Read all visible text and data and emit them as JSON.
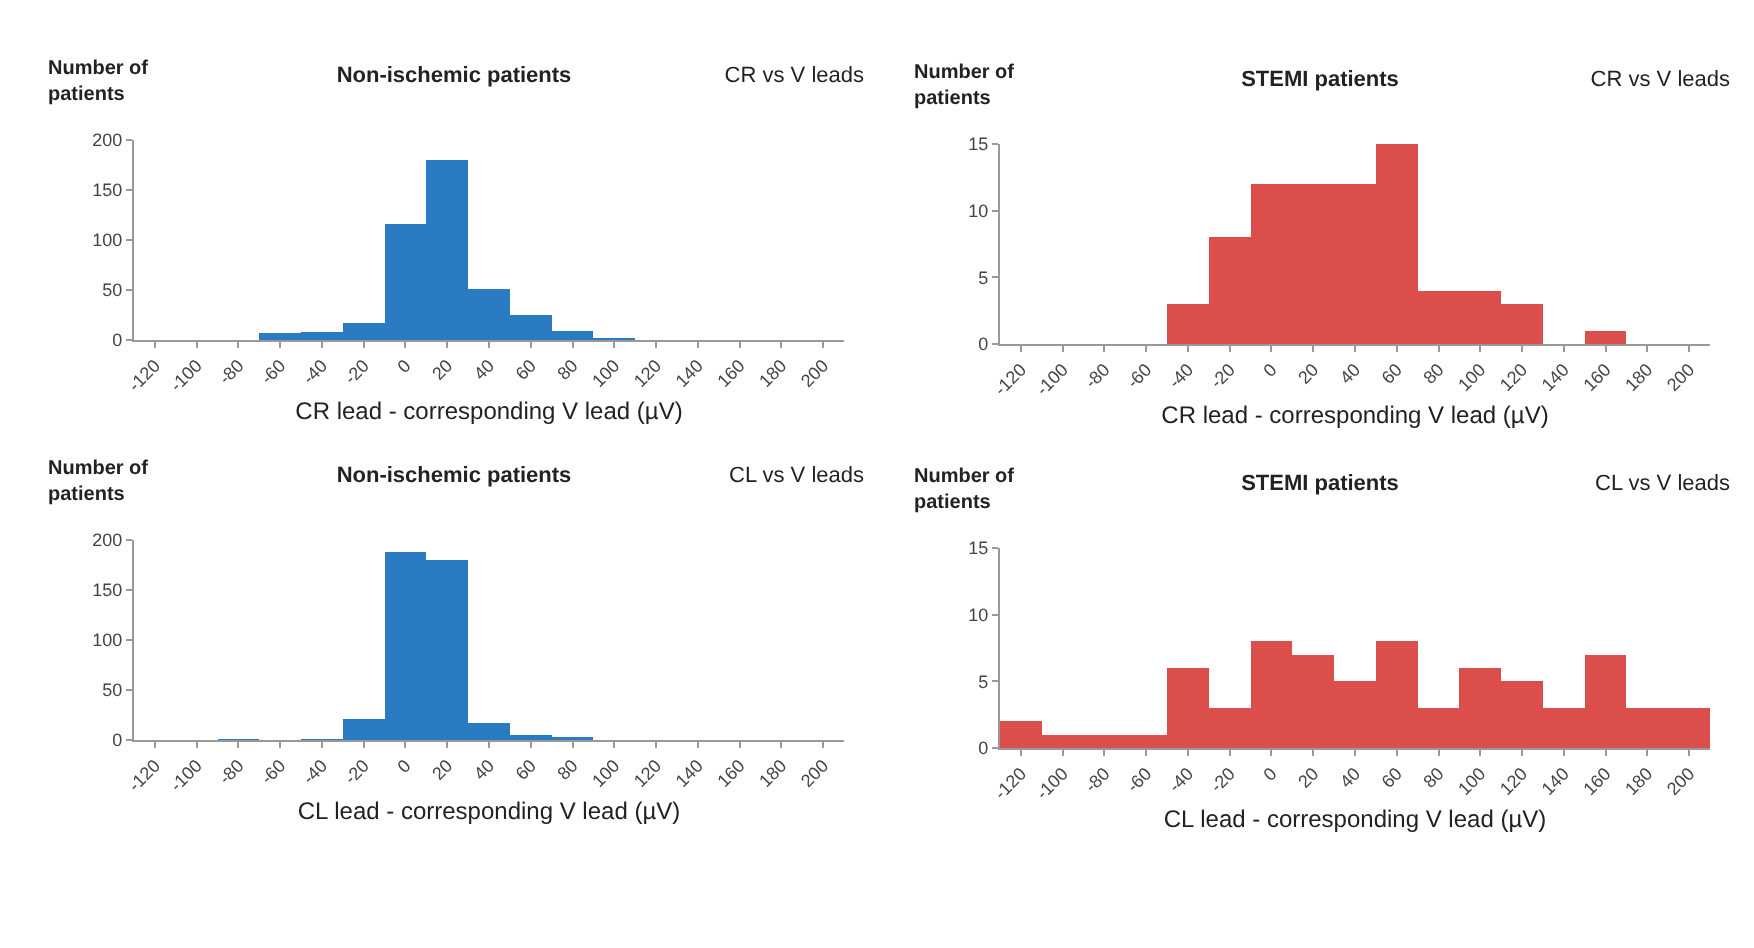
{
  "chart_data": [
    {
      "type": "bar",
      "title": "Non-ischemic patients",
      "ylabel": "Number of patients",
      "xlabel": "CR lead - corresponding V lead (µV)",
      "annotations": [
        "CR vs V leads"
      ],
      "categories": [
        "-120",
        "-100",
        "-80",
        "-60",
        "-40",
        "-20",
        "0",
        "20",
        "40",
        "60",
        "80",
        "100",
        "120",
        "140",
        "160",
        "180",
        "200"
      ],
      "values": [
        0,
        0,
        0,
        7,
        8,
        17,
        116,
        180,
        51,
        25,
        9,
        2,
        0,
        0,
        0,
        0,
        0
      ],
      "color": "#2a7bc1",
      "ylim": [
        0,
        200
      ],
      "yticks": [
        0,
        50,
        100,
        150,
        200
      ],
      "grid": false
    },
    {
      "type": "bar",
      "title": "STEMI patients",
      "ylabel": "Number of patients",
      "xlabel": "CR lead - corresponding V lead (µV)",
      "annotations": [
        "CR vs V leads"
      ],
      "categories": [
        "-120",
        "-100",
        "-80",
        "-60",
        "-40",
        "-20",
        "0",
        "20",
        "40",
        "60",
        "80",
        "100",
        "120",
        "140",
        "160",
        "180",
        "200"
      ],
      "values": [
        0,
        0,
        0,
        0,
        3,
        8,
        12,
        12,
        12,
        15,
        4,
        4,
        3,
        0,
        1,
        0,
        0
      ],
      "color": "#dc4e4b",
      "ylim": [
        0,
        15
      ],
      "yticks": [
        0,
        5,
        10,
        15
      ],
      "grid": false
    },
    {
      "type": "bar",
      "title": "Non-ischemic patients",
      "ylabel": "Number of patients",
      "xlabel": "CL lead - corresponding V lead (µV)",
      "annotations": [
        "CL vs V leads"
      ],
      "categories": [
        "-120",
        "-100",
        "-80",
        "-60",
        "-40",
        "-20",
        "0",
        "20",
        "40",
        "60",
        "80",
        "100",
        "120",
        "140",
        "160",
        "180",
        "200"
      ],
      "values": [
        0,
        0,
        1,
        0,
        1,
        21,
        188,
        180,
        17,
        5,
        3,
        0,
        0,
        0,
        0,
        0,
        0
      ],
      "color": "#2a7bc1",
      "ylim": [
        0,
        200
      ],
      "yticks": [
        0,
        50,
        100,
        150,
        200
      ],
      "grid": false
    },
    {
      "type": "bar",
      "title": "STEMI patients",
      "ylabel": "Number of patients",
      "xlabel": "CL lead - corresponding V lead (µV)",
      "annotations": [
        "CL vs V leads"
      ],
      "categories": [
        "-120",
        "-100",
        "-80",
        "-60",
        "-40",
        "-20",
        "0",
        "20",
        "40",
        "60",
        "80",
        "100",
        "120",
        "140",
        "160",
        "180",
        "200"
      ],
      "values": [
        2,
        1,
        1,
        1,
        6,
        3,
        8,
        7,
        5,
        8,
        3,
        6,
        5,
        3,
        7,
        3,
        3
      ],
      "color": "#dc4e4b",
      "ylim": [
        0,
        15
      ],
      "yticks": [
        0,
        5,
        10,
        15
      ],
      "grid": false
    }
  ]
}
